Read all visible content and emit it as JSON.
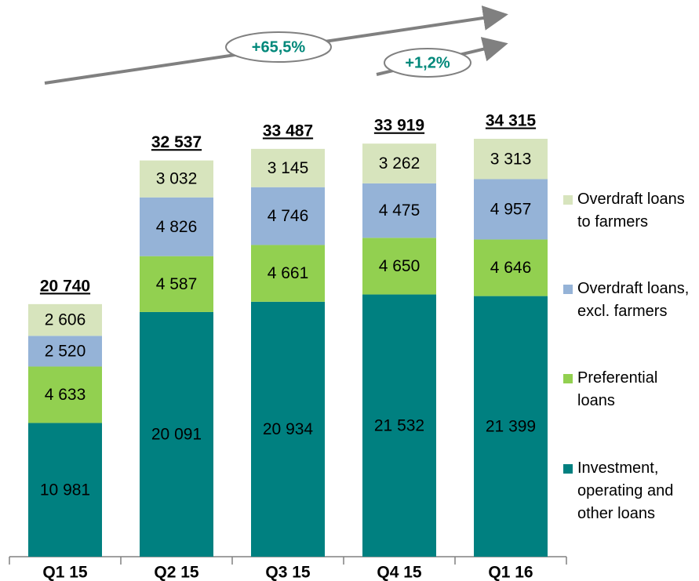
{
  "chart_data": {
    "type": "stacked_bar",
    "categories": [
      "Q1 15",
      "Q2 15",
      "Q3 15",
      "Q4 15",
      "Q1 16"
    ],
    "series": [
      {
        "name": "Investment, operating and other loans",
        "color": "#008080",
        "values": [
          10981,
          20091,
          20934,
          21532,
          21399
        ],
        "value_labels": [
          "10 981",
          "20 091",
          "20 934",
          "21 532",
          "21 399"
        ]
      },
      {
        "name": "Preferential loans",
        "color": "#92d050",
        "values": [
          4633,
          4587,
          4661,
          4650,
          4646
        ],
        "value_labels": [
          "4 633",
          "4 587",
          "4 661",
          "4 650",
          "4 646"
        ]
      },
      {
        "name": "Overdraft loans, excl. farmers",
        "color": "#95b3d7",
        "values": [
          2520,
          4826,
          4746,
          4475,
          4957
        ],
        "value_labels": [
          "2 520",
          "4 826",
          "4 746",
          "4 475",
          "4 957"
        ]
      },
      {
        "name": "Overdraft loans to farmers",
        "color": "#d7e4bd",
        "values": [
          2606,
          3032,
          3145,
          3262,
          3313
        ],
        "value_labels": [
          "2 606",
          "3 032",
          "3 145",
          "3 262",
          "3 313"
        ]
      }
    ],
    "totals": [
      20740,
      32537,
      33487,
      33919,
      34315
    ],
    "total_labels": [
      "20 740",
      "32 537",
      "33 487",
      "33 919",
      "34 315"
    ],
    "annotations": [
      "+65,5%",
      "+1,2%"
    ]
  }
}
